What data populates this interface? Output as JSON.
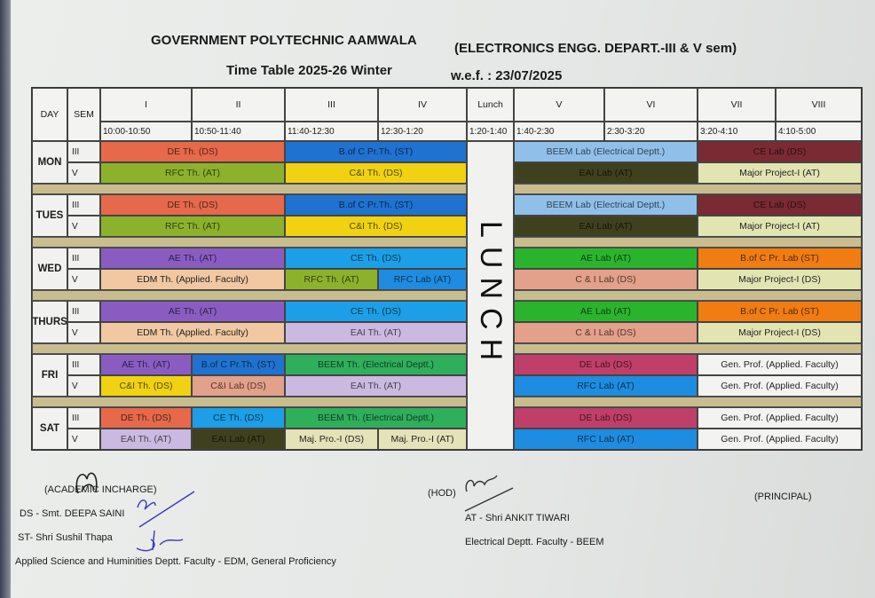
{
  "header": {
    "institute": "GOVERNMENT POLYTECHNIC AAMWALA",
    "department": "(ELECTRONICS ENGG. DEPART.-III & V sem)",
    "title": "Time Table 2025-26 Winter",
    "wef": "w.e.f. : 23/07/2025"
  },
  "columns": {
    "day": "DAY",
    "sem": "SEM",
    "periods": [
      "I",
      "II",
      "III",
      "IV",
      "Lunch",
      "V",
      "VI",
      "VII",
      "VIII"
    ],
    "times": [
      "10:00-10:50",
      "10:50-11:40",
      "11:40-12:30",
      "12:30-1:20",
      "1:20-1:40",
      "1:40-2:30",
      "2:30-3:20",
      "3:20-4:10",
      "4:10-5:00"
    ]
  },
  "lunch_label": "LUNCH",
  "colors": {
    "de_th": "#e5694a",
    "bofc_th": "#1f72d0",
    "rfc_th": "#8cb22c",
    "ci_th": "#f0d212",
    "ae_th": "#8a5cc2",
    "ce_th": "#1c9fe6",
    "edm_th": "#f1c8a2",
    "rfc_lab": "#1e8ce0",
    "eai_th": "#cbb9e2",
    "beem_th": "#2fae5c",
    "ci_lab": "#e3a08a",
    "beem_lab": "#90c0ea",
    "ce_lab": "#7a2a32",
    "eai_lab": "#3f401e",
    "major": "#e2e5b2",
    "ae_lab": "#2ab42e",
    "bofc_lab": "#f07c12",
    "de_lab": "#c03e6a",
    "genprof": "#f3f4f2",
    "majpro": "#e4e2b8"
  },
  "days": [
    {
      "name": "MON",
      "rows": [
        {
          "sem": "III",
          "am": [
            [
              "DE Th. (DS)",
              2,
              "de_th"
            ],
            [
              "B.of C Pr.Th. (ST)",
              2,
              "bofc_th"
            ]
          ],
          "pm": [
            [
              "BEEM Lab (Electrical Deptt.)",
              2,
              "beem_lab"
            ],
            [
              "CE Lab (DS)",
              2,
              "ce_lab"
            ]
          ]
        },
        {
          "sem": "V",
          "am": [
            [
              "RFC Th. (AT)",
              2,
              "rfc_th"
            ],
            [
              "C&I Th. (DS)",
              2,
              "ci_th"
            ]
          ],
          "pm": [
            [
              "EAI Lab (AT)",
              2,
              "eai_lab"
            ],
            [
              "Major Project-I (AT)",
              2,
              "major"
            ]
          ]
        }
      ]
    },
    {
      "name": "TUES",
      "rows": [
        {
          "sem": "III",
          "am": [
            [
              "DE Th. (DS)",
              2,
              "de_th"
            ],
            [
              "B.of C Pr.Th. (ST)",
              2,
              "bofc_th"
            ]
          ],
          "pm": [
            [
              "BEEM Lab (Electrical Deptt.)",
              2,
              "beem_lab"
            ],
            [
              "CE Lab (DS)",
              2,
              "ce_lab"
            ]
          ]
        },
        {
          "sem": "V",
          "am": [
            [
              "RFC Th. (AT)",
              2,
              "rfc_th"
            ],
            [
              "C&I Th. (DS)",
              2,
              "ci_th"
            ]
          ],
          "pm": [
            [
              "EAI Lab (AT)",
              2,
              "eai_lab"
            ],
            [
              "Major Project-I (AT)",
              2,
              "major"
            ]
          ]
        }
      ]
    },
    {
      "name": "WED",
      "rows": [
        {
          "sem": "III",
          "am": [
            [
              "AE Th. (AT)",
              2,
              "ae_th"
            ],
            [
              "CE Th. (DS)",
              2,
              "ce_th"
            ]
          ],
          "pm": [
            [
              "AE Lab (AT)",
              2,
              "ae_lab"
            ],
            [
              "B.of C Pr. Lab (ST)",
              2,
              "bofc_lab"
            ]
          ]
        },
        {
          "sem": "V",
          "am": [
            [
              "EDM Th. (Applied. Faculty)",
              2,
              "edm_th"
            ],
            [
              "RFC Th. (AT)",
              1,
              "rfc_th"
            ],
            [
              "RFC Lab (AT)",
              1,
              "rfc_lab"
            ]
          ],
          "pm": [
            [
              "C & I Lab (DS)",
              2,
              "ci_lab"
            ],
            [
              "Major Project-I (DS)",
              2,
              "major"
            ]
          ]
        }
      ]
    },
    {
      "name": "THURS",
      "rows": [
        {
          "sem": "III",
          "am": [
            [
              "AE Th. (AT)",
              2,
              "ae_th"
            ],
            [
              "CE Th. (DS)",
              2,
              "ce_th"
            ]
          ],
          "pm": [
            [
              "AE Lab (AT)",
              2,
              "ae_lab"
            ],
            [
              "B.of C Pr. Lab (ST)",
              2,
              "bofc_lab"
            ]
          ]
        },
        {
          "sem": "V",
          "am": [
            [
              "EDM Th. (Applied. Faculty)",
              2,
              "edm_th"
            ],
            [
              "EAI Th. (AT)",
              2,
              "eai_th"
            ]
          ],
          "pm": [
            [
              "C & I Lab (DS)",
              2,
              "ci_lab"
            ],
            [
              "Major Project-I (DS)",
              2,
              "major"
            ]
          ]
        }
      ]
    },
    {
      "name": "FRI",
      "rows": [
        {
          "sem": "III",
          "am": [
            [
              "AE Th. (AT)",
              1,
              "ae_th"
            ],
            [
              "B.of C Pr.Th. (ST)",
              1,
              "bofc_th"
            ],
            [
              "BEEM Th. (Electrical Deptt.)",
              2,
              "beem_th"
            ]
          ],
          "pm": [
            [
              "DE Lab (DS)",
              2,
              "de_lab"
            ],
            [
              "Gen. Prof. (Applied. Faculty)",
              2,
              "genprof"
            ]
          ]
        },
        {
          "sem": "V",
          "am": [
            [
              "C&I Th. (DS)",
              1,
              "ci_th"
            ],
            [
              "C&I Lab (DS)",
              1,
              "ci_lab"
            ],
            [
              "EAI Th. (AT)",
              2,
              "eai_th"
            ]
          ],
          "pm": [
            [
              "RFC Lab (AT)",
              2,
              "rfc_lab"
            ],
            [
              "Gen. Prof. (Applied. Faculty)",
              2,
              "genprof"
            ]
          ]
        }
      ]
    },
    {
      "name": "SAT",
      "rows": [
        {
          "sem": "III",
          "am": [
            [
              "DE Th. (DS)",
              1,
              "de_th"
            ],
            [
              "CE Th. (DS)",
              1,
              "ce_th"
            ],
            [
              "BEEM Th. (Electrical Deptt.)",
              2,
              "beem_th"
            ]
          ],
          "pm": [
            [
              "DE Lab (DS)",
              2,
              "de_lab"
            ],
            [
              "Gen. Prof. (Applied. Faculty)",
              2,
              "genprof"
            ]
          ]
        },
        {
          "sem": "V",
          "am": [
            [
              "EAI Th. (AT)",
              1,
              "eai_th"
            ],
            [
              "EAI Lab (AT)",
              1,
              "eai_lab"
            ],
            [
              "Maj. Pro.-I (DS)",
              1,
              "majpro"
            ],
            [
              "Maj. Pro.-I (AT)",
              1,
              "majpro"
            ]
          ],
          "pm": [
            [
              "RFC Lab (AT)",
              2,
              "rfc_lab"
            ],
            [
              "Gen. Prof. (Applied. Faculty)",
              2,
              "genprof"
            ]
          ]
        }
      ]
    }
  ],
  "footer": {
    "academic": "(ACADEMIC INCHARGE)",
    "ds": "DS - Smt. DEEPA SAINI",
    "st": "ST- Shri Sushil Thapa",
    "applied": "Applied Science and Huminities Deptt. Faculty - EDM, General Proficiency",
    "hod": "(HOD)",
    "at": "AT - Shri ANKIT TIWARI",
    "electrical": "Electrical Deptt. Faculty - BEEM",
    "principal": "(PRINCIPAL)"
  }
}
